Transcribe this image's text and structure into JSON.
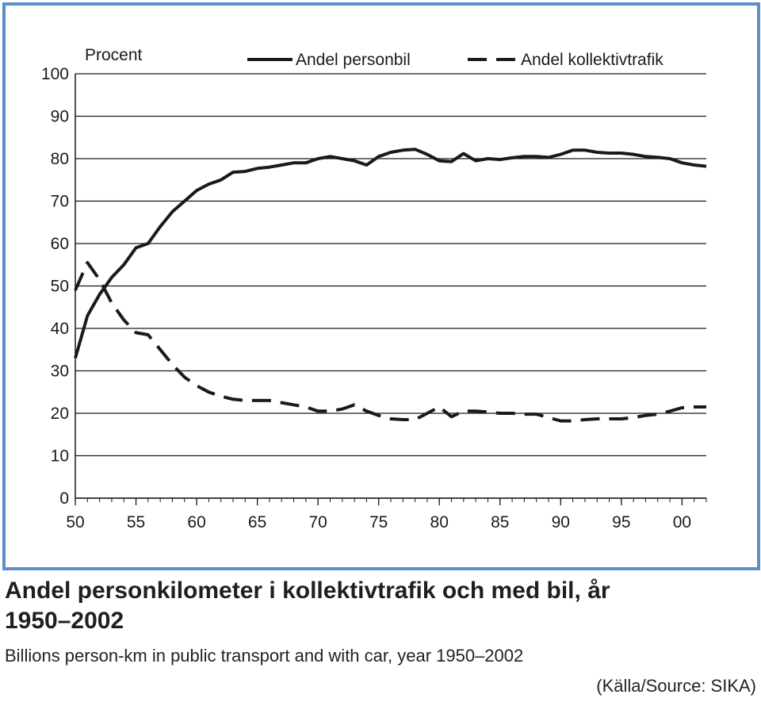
{
  "chart_data": {
    "type": "line",
    "ylabel": "Procent",
    "xlabel": "",
    "ylim": [
      0,
      100
    ],
    "xlim": [
      1950,
      2002
    ],
    "y_ticks": [
      0,
      10,
      20,
      30,
      40,
      50,
      60,
      70,
      80,
      90,
      100
    ],
    "x_ticks": [
      1950,
      1955,
      1960,
      1965,
      1970,
      1975,
      1980,
      1985,
      1990,
      1995,
      2000
    ],
    "x_tick_labels": [
      "50",
      "55",
      "60",
      "65",
      "70",
      "75",
      "80",
      "85",
      "90",
      "95",
      "00"
    ],
    "grid": "horizontal",
    "legend_position": "top-right",
    "series": [
      {
        "name": "Andel personbil",
        "style": "solid",
        "color": "#1a1a1a",
        "x": [
          1950,
          1951,
          1952,
          1953,
          1954,
          1955,
          1956,
          1957,
          1958,
          1959,
          1960,
          1961,
          1962,
          1963,
          1964,
          1965,
          1966,
          1967,
          1968,
          1969,
          1970,
          1971,
          1972,
          1973,
          1974,
          1975,
          1976,
          1977,
          1978,
          1979,
          1980,
          1981,
          1982,
          1983,
          1984,
          1985,
          1986,
          1987,
          1988,
          1989,
          1990,
          1991,
          1992,
          1993,
          1994,
          1995,
          1996,
          1997,
          1998,
          1999,
          2000,
          2001,
          2002
        ],
        "values": [
          33,
          43,
          48,
          52,
          55,
          59,
          60,
          64,
          67.5,
          70,
          72.5,
          74,
          75,
          76.8,
          77,
          77.7,
          78,
          78.5,
          79,
          79,
          80,
          80.5,
          80,
          79.5,
          78.5,
          80.5,
          81.5,
          82,
          82.2,
          81,
          79.5,
          79.3,
          81.2,
          79.5,
          80,
          79.8,
          80.2,
          80.5,
          80.5,
          80.3,
          81,
          82,
          82,
          81.5,
          81.3,
          81.3,
          81,
          80.5,
          80.3,
          80,
          79,
          78.5,
          78.2
        ]
      },
      {
        "name": "Andel kollektivtrafik",
        "style": "dashed",
        "color": "#1a1a1a",
        "x": [
          1950,
          1951,
          1952,
          1953,
          1954,
          1955,
          1956,
          1957,
          1958,
          1959,
          1960,
          1961,
          1962,
          1963,
          1964,
          1965,
          1966,
          1967,
          1968,
          1969,
          1970,
          1971,
          1972,
          1973,
          1974,
          1975,
          1976,
          1977,
          1978,
          1979,
          1980,
          1981,
          1982,
          1983,
          1984,
          1985,
          1986,
          1987,
          1988,
          1989,
          1990,
          1991,
          1992,
          1993,
          1994,
          1995,
          1996,
          1997,
          1998,
          1999,
          2000,
          2001,
          2002
        ],
        "values": [
          49,
          55.5,
          51.5,
          46,
          42,
          39,
          38.5,
          35,
          31.5,
          28.5,
          26.5,
          25,
          24,
          23.3,
          23,
          23,
          23,
          22.5,
          22,
          21.5,
          20.5,
          20.5,
          21,
          22,
          20.5,
          19.5,
          18.7,
          18.5,
          18.5,
          20,
          21.5,
          19.2,
          20.5,
          20.5,
          20.3,
          20,
          20,
          19.8,
          19.8,
          19,
          18.2,
          18.2,
          18.5,
          18.7,
          18.7,
          18.7,
          19,
          19.5,
          19.8,
          20.5,
          21.3,
          21.5,
          21.5
        ]
      }
    ]
  },
  "caption": {
    "title": "Andel personkilometer i kollektivtrafik och med bil, år 1950–2002",
    "subtitle": "Billions person-km in public transport and with car, year 1950–2002",
    "source": "(Källa/Source: SIKA)"
  },
  "colors": {
    "frame_border": "#5b8fc7",
    "line": "#1a1a1a",
    "grid": "#1a1a1a",
    "background": "#ffffff"
  }
}
